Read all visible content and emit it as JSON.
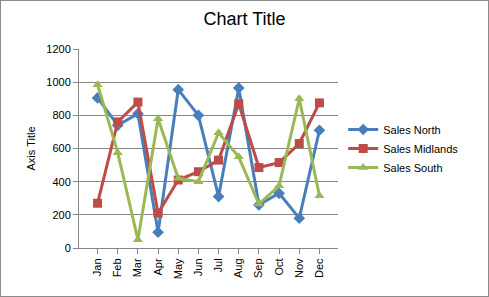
{
  "chart_data": {
    "type": "line",
    "title": "Chart Title",
    "y_label": "Axis Title",
    "categories": [
      "Jan",
      "Feb",
      "Mar",
      "Apr",
      "May",
      "Jun",
      "Jul",
      "Aug",
      "Sep",
      "Oct",
      "Nov",
      "Dec"
    ],
    "series": [
      {
        "name": "Sales North",
        "color": "#4a7ebb",
        "marker": "diamond",
        "values": [
          905,
          740,
          810,
          95,
          955,
          800,
          310,
          965,
          260,
          330,
          180,
          710
        ]
      },
      {
        "name": "Sales Midlands",
        "color": "#be4b48",
        "marker": "square",
        "values": [
          270,
          760,
          880,
          210,
          410,
          460,
          530,
          870,
          485,
          515,
          630,
          875
        ]
      },
      {
        "name": "Sales South",
        "color": "#98b954",
        "marker": "triangle",
        "values": [
          985,
          575,
          50,
          780,
          420,
          400,
          695,
          550,
          265,
          375,
          900,
          315
        ]
      }
    ],
    "ylim": [
      0,
      1200
    ],
    "yticks": [
      0,
      200,
      400,
      600,
      800,
      1000,
      1200
    ],
    "grid": true,
    "legend": "right"
  }
}
